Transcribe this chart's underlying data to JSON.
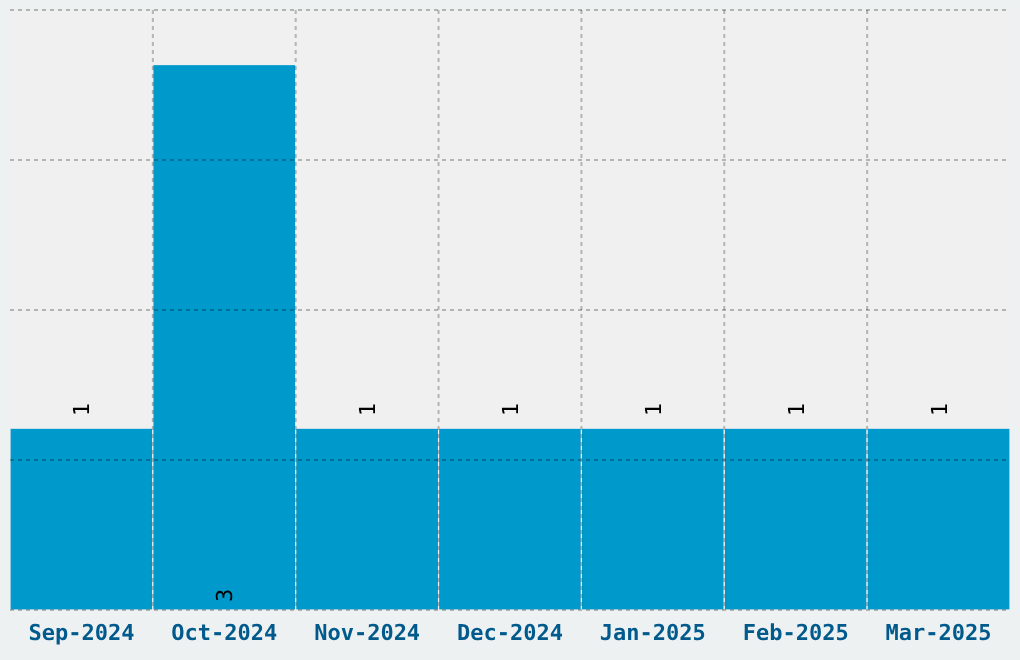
{
  "chart_data": {
    "type": "bar",
    "categories": [
      "Sep-2024",
      "Oct-2024",
      "Nov-2024",
      "Dec-2024",
      "Jan-2025",
      "Feb-2025",
      "Mar-2025"
    ],
    "values": [
      1,
      3,
      1,
      1,
      1,
      1,
      1
    ],
    "color": "#0099cc",
    "ylim": [
      0,
      3.3
    ],
    "yticks": [
      {
        "value": 0,
        "label": null
      },
      {
        "value": 0.825,
        "label": null
      },
      {
        "value": 1.65,
        "label": null
      },
      {
        "value": 2.475,
        "label": null
      },
      {
        "value": 3.3,
        "label": null
      }
    ],
    "tick_labels": "x",
    "grid": true,
    "data_labels": true
  }
}
